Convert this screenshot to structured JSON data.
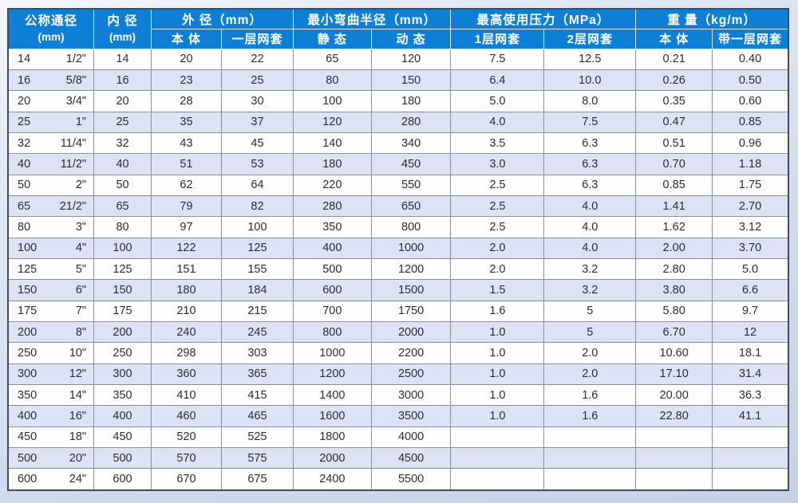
{
  "table": {
    "header": {
      "nominal": {
        "line1": "公称通径",
        "line2": "(mm)"
      },
      "inner": {
        "line1": "内 径",
        "line2": "(mm)"
      },
      "outer": {
        "label": "外 径（mm）",
        "sub1": "本 体",
        "sub2": "一层网套"
      },
      "bend": {
        "label": "最小弯曲半径（mm）",
        "sub1": "静 态",
        "sub2": "动 态"
      },
      "pressure": {
        "label": "最高使用压力（MPa）",
        "sub1": "1层网套",
        "sub2": "2层网套"
      },
      "weight": {
        "label": "重 量（kg/m）",
        "sub1": "本 体",
        "sub2": "带一层网套"
      }
    },
    "rows": [
      [
        "14",
        "1/2\"",
        "14",
        "20",
        "22",
        "65",
        "120",
        "7.5",
        "12.5",
        "0.21",
        "0.40"
      ],
      [
        "16",
        "5/8\"",
        "16",
        "23",
        "25",
        "80",
        "150",
        "6.4",
        "10.0",
        "0.26",
        "0.50"
      ],
      [
        "20",
        "3/4\"",
        "20",
        "28",
        "30",
        "100",
        "180",
        "5.0",
        "8.0",
        "0.35",
        "0.60"
      ],
      [
        "25",
        "1\"",
        "25",
        "35",
        "37",
        "120",
        "280",
        "4.0",
        "7.5",
        "0.47",
        "0.85"
      ],
      [
        "32",
        "11/4\"",
        "32",
        "43",
        "45",
        "140",
        "340",
        "3.5",
        "6.3",
        "0.51",
        "0.96"
      ],
      [
        "40",
        "11/2\"",
        "40",
        "51",
        "53",
        "180",
        "450",
        "3.0",
        "6.3",
        "0.70",
        "1.18"
      ],
      [
        "50",
        "2\"",
        "50",
        "62",
        "64",
        "220",
        "550",
        "2.5",
        "6.3",
        "0.85",
        "1.75"
      ],
      [
        "65",
        "21/2\"",
        "65",
        "79",
        "82",
        "280",
        "650",
        "2.5",
        "4.0",
        "1.41",
        "2.70"
      ],
      [
        "80",
        "3\"",
        "80",
        "97",
        "100",
        "350",
        "800",
        "2.5",
        "4.0",
        "1.62",
        "3.12"
      ],
      [
        "100",
        "4\"",
        "100",
        "122",
        "125",
        "400",
        "1000",
        "2.0",
        "4.0",
        "2.00",
        "3.70"
      ],
      [
        "125",
        "5\"",
        "125",
        "151",
        "155",
        "500",
        "1200",
        "2.0",
        "3.2",
        "2.80",
        "5.0"
      ],
      [
        "150",
        "6\"",
        "150",
        "180",
        "184",
        "600",
        "1500",
        "1.5",
        "3.2",
        "3.80",
        "6.6"
      ],
      [
        "175",
        "7\"",
        "175",
        "210",
        "215",
        "700",
        "1750",
        "1.6",
        "5",
        "5.80",
        "9.7"
      ],
      [
        "200",
        "8\"",
        "200",
        "240",
        "245",
        "800",
        "2000",
        "1.0",
        "5",
        "6.70",
        "12"
      ],
      [
        "250",
        "10\"",
        "250",
        "298",
        "303",
        "1000",
        "2200",
        "1.0",
        "2.0",
        "10.60",
        "18.1"
      ],
      [
        "300",
        "12\"",
        "300",
        "360",
        "365",
        "1200",
        "2500",
        "1.0",
        "2.0",
        "17.10",
        "31.4"
      ],
      [
        "350",
        "14\"",
        "350",
        "410",
        "415",
        "1400",
        "3000",
        "1.0",
        "1.6",
        "20.00",
        "36.3"
      ],
      [
        "400",
        "16\"",
        "400",
        "460",
        "465",
        "1600",
        "3500",
        "1.0",
        "1.6",
        "22.80",
        "41.1"
      ],
      [
        "450",
        "18\"",
        "450",
        "520",
        "525",
        "1800",
        "4000",
        "",
        "",
        "",
        ""
      ],
      [
        "500",
        "20\"",
        "500",
        "570",
        "575",
        "2000",
        "4500",
        "",
        "",
        "",
        ""
      ],
      [
        "600",
        "24\"",
        "600",
        "670",
        "675",
        "2400",
        "5500",
        "",
        "",
        "",
        ""
      ]
    ]
  },
  "colors": {
    "header_blue": "#0e7fd4",
    "alt_row": "#dde2f4",
    "row_white": "#fdfdfe",
    "grid_line": "#8a8f98",
    "page_background": "#ccd9ec"
  },
  "chart_data": {
    "type": "table",
    "title": "胶管规格参数表",
    "columns": [
      "公称通径(mm)",
      "公称通径(inch)",
      "内径(mm)",
      "外径本体(mm)",
      "外径一层网套(mm)",
      "最小弯曲半径静态(mm)",
      "最小弯曲半径动态(mm)",
      "最高使用压力1层网套(MPa)",
      "最高使用压力2层网套(MPa)",
      "重量本体(kg/m)",
      "重量带一层网套(kg/m)"
    ],
    "note": "rows mirror table.rows"
  }
}
